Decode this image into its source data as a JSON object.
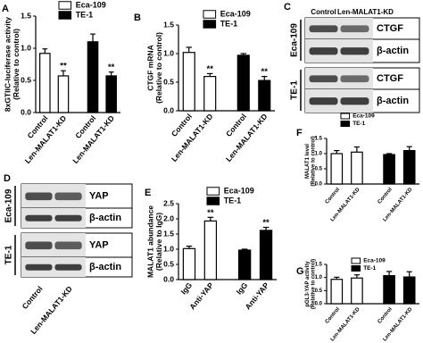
{
  "chart_data": [
    {
      "type": "bar",
      "label": "A",
      "ylabel": "8xGTIIC-luciferase activity",
      "ylabel2": "(Relative to control)",
      "categories": [
        "Control",
        "Len-MALAT1-KD",
        "Control",
        "Len-MALAT1-KD"
      ],
      "series": [
        {
          "name": "Eca-109",
          "color": "#ffffff",
          "values": [
            0.92,
            0.57,
            null,
            null
          ],
          "errors": [
            0.07,
            0.08,
            null,
            null
          ]
        },
        {
          "name": "TE-1",
          "color": "#000000",
          "values": [
            null,
            null,
            1.1,
            0.57
          ],
          "errors": [
            null,
            null,
            0.12,
            0.06
          ]
        }
      ],
      "significance": [
        null,
        "**",
        null,
        "**"
      ],
      "ylim": [
        0,
        1.5
      ],
      "yticks": [
        {
          "value": 0,
          "label": "0.0"
        },
        0.5,
        {
          "value": 1,
          "label": "1.0"
        },
        1.5
      ]
    },
    {
      "type": "bar",
      "label": "B",
      "ylabel": "CTGF mRNA",
      "ylabel2": "(Relative to control)",
      "categories": [
        "Control",
        "Len-MALAT1-KD",
        "Control",
        "Len-MALAT1-KD"
      ],
      "series": [
        {
          "name": "Eca-109",
          "color": "#ffffff",
          "values": [
            1.02,
            0.6,
            null,
            null
          ],
          "errors": [
            0.09,
            0.05,
            null,
            null
          ]
        },
        {
          "name": "TE-1",
          "color": "#000000",
          "values": [
            null,
            null,
            0.97,
            0.53
          ],
          "errors": [
            null,
            null,
            0.03,
            0.07
          ]
        }
      ],
      "significance": [
        null,
        "**",
        null,
        "**"
      ],
      "ylim": [
        0,
        1.5
      ],
      "yticks": [
        {
          "value": 0,
          "label": "0.0"
        },
        0.5,
        {
          "value": 1,
          "label": "1.0"
        },
        1.5
      ]
    },
    {
      "type": "bar",
      "label": "E",
      "ylabel": "MALAT1 abundance",
      "ylabel2": "(Relative to IgG)",
      "categories": [
        "IgG",
        "Anti-YAP",
        "IgG",
        "Anti-YAP"
      ],
      "series": [
        {
          "name": "Eca-109",
          "color": "#ffffff",
          "values": [
            1.02,
            1.93,
            null,
            null
          ],
          "errors": [
            0.08,
            0.12,
            null,
            null
          ]
        },
        {
          "name": "TE-1",
          "color": "#000000",
          "values": [
            null,
            null,
            0.97,
            1.62
          ],
          "errors": [
            null,
            null,
            0.03,
            0.1
          ]
        }
      ],
      "significance": [
        null,
        "**",
        null,
        "**"
      ],
      "ylim": [
        0,
        2.5
      ],
      "yticks": [
        {
          "value": 0,
          "label": "0.0"
        },
        0.5,
        {
          "value": 1,
          "label": "1.0"
        },
        1.5,
        {
          "value": 2,
          "label": "2.0"
        },
        2.5
      ]
    },
    {
      "type": "bar",
      "label": "F",
      "ylabel": "MALAT1 level",
      "ylabel2": "(Relative to control)",
      "categories": [
        "Control",
        "Len-MALAT1-KD",
        "Control",
        "Len-MALAT1-KD"
      ],
      "series": [
        {
          "name": "Eca-109",
          "color": "#ffffff",
          "values": [
            1.0,
            1.05,
            null,
            null
          ],
          "errors": [
            0.1,
            0.17,
            null,
            null
          ]
        },
        {
          "name": "TE-1",
          "color": "#000000",
          "values": [
            null,
            null,
            0.97,
            1.1
          ],
          "errors": [
            null,
            null,
            0.03,
            0.13
          ]
        }
      ],
      "ylim": [
        0,
        1.5
      ],
      "yticks": [
        {
          "value": 0,
          "label": "0.0"
        },
        0.5,
        {
          "value": 1,
          "label": "1.0"
        },
        1.5
      ]
    },
    {
      "type": "bar",
      "label": "G",
      "ylabel": "pGL3-YAP activity",
      "ylabel2": "(Relative to control)",
      "categories": [
        "Control",
        "Len-MALAT1-KD",
        "Control",
        "Len-MALAT1-KD"
      ],
      "series": [
        {
          "name": "Eca-109",
          "color": "#ffffff",
          "values": [
            0.93,
            0.98,
            null,
            null
          ],
          "errors": [
            0.08,
            0.12,
            null,
            null
          ]
        },
        {
          "name": "TE-1",
          "color": "#000000",
          "values": [
            null,
            null,
            1.07,
            1.02
          ],
          "errors": [
            null,
            null,
            0.16,
            0.2
          ]
        }
      ],
      "ylim": [
        0,
        1.5
      ],
      "yticks": [
        {
          "value": 0,
          "label": "0.0"
        },
        0.5,
        {
          "value": 1,
          "label": "1.0"
        },
        1.5
      ]
    }
  ],
  "blots": [
    {
      "label": "C",
      "columns": [
        "Control",
        "Len-MALAT1-KD"
      ],
      "groups": [
        {
          "name": "Eca-109",
          "rows": [
            "CTGF",
            "β-actin"
          ]
        },
        {
          "name": "TE-1",
          "rows": [
            "CTGF",
            "β-actin"
          ]
        }
      ]
    },
    {
      "label": "D",
      "columns": [
        "Control",
        "Len-MALAT1-KD"
      ],
      "groups": [
        {
          "name": "Eca-109",
          "rows": [
            "YAP",
            "β-actin"
          ]
        },
        {
          "name": "TE-1",
          "rows": [
            "YAP",
            "β-actin"
          ]
        }
      ]
    }
  ]
}
